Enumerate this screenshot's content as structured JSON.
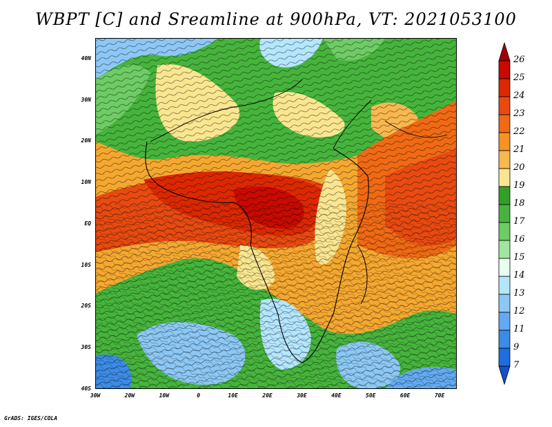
{
  "title": "WBPT [C] and Sreamline at 900hPa, VT: 2021053100",
  "credit": "GrADS: IGES/COLA",
  "map": {
    "lon_range": [
      -30,
      75
    ],
    "lat_range": [
      -40,
      45
    ],
    "y_ticks": [
      "40N",
      "30N",
      "20N",
      "10N",
      "EQ",
      "10S",
      "20S",
      "30S",
      "40S"
    ],
    "x_ticks": [
      "30W",
      "20W",
      "10W",
      "0",
      "10E",
      "20E",
      "30E",
      "40E",
      "50E",
      "60E",
      "70E"
    ]
  },
  "colorbar": {
    "labels": [
      "26",
      "25",
      "24",
      "23",
      "22",
      "21",
      "20",
      "19",
      "18",
      "17",
      "16",
      "15",
      "14",
      "13",
      "12",
      "11",
      "9",
      "7"
    ],
    "colors": [
      "#a50000",
      "#c80a00",
      "#dc2800",
      "#e84a10",
      "#f06a14",
      "#f89224",
      "#f8b850",
      "#fae690",
      "#32a028",
      "#46b43c",
      "#6ecc64",
      "#a0e6a0",
      "#e6fff0",
      "#b4e6ff",
      "#8cc8f5",
      "#64aaf0",
      "#3c8ce6",
      "#1e6edc",
      "#1450c8"
    ]
  }
}
